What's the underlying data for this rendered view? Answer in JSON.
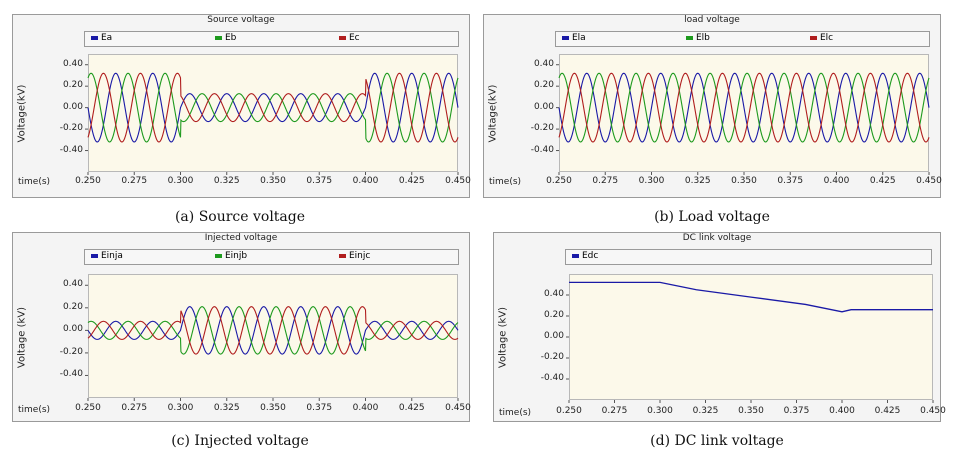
{
  "chart_data": [
    {
      "type": "line",
      "title": "Source voltage",
      "caption": "(a) Source voltage",
      "ylabel": "Voltage(kV)",
      "xlabel": "time(s)",
      "xlim": [
        0.25,
        0.45
      ],
      "ylim": [
        -0.6,
        0.5
      ],
      "xticks": [
        "0.250",
        "0.275",
        "0.300",
        "0.325",
        "0.350",
        "0.375",
        "0.400",
        "0.425",
        "0.450"
      ],
      "yticks": [
        "0.40",
        "0.20",
        "0.00",
        "-0.20",
        "-0.40"
      ],
      "series": [
        {
          "name": "Ea",
          "color": "#1a1aa6"
        },
        {
          "name": "Eb",
          "color": "#1e9a1e"
        },
        {
          "name": "Ec",
          "color": "#b01e1e"
        }
      ],
      "frequency_hz": 50,
      "amplitude_segments": [
        {
          "from": 0.25,
          "to": 0.3,
          "amplitude": 0.32
        },
        {
          "from": 0.3,
          "to": 0.4,
          "amplitude": 0.13
        },
        {
          "from": 0.4,
          "to": 0.45,
          "amplitude": 0.32
        }
      ]
    },
    {
      "type": "line",
      "title": "load voltage",
      "caption": "(b) Load voltage",
      "ylabel": "Voltage(kV)",
      "xlabel": "time(s)",
      "xlim": [
        0.25,
        0.45
      ],
      "ylim": [
        -0.6,
        0.5
      ],
      "xticks": [
        "0.250",
        "0.275",
        "0.300",
        "0.325",
        "0.350",
        "0.375",
        "0.400",
        "0.425",
        "0.450"
      ],
      "yticks": [
        "0.40",
        "0.20",
        "0.00",
        "-0.20",
        "-0.40"
      ],
      "series": [
        {
          "name": "Ela",
          "color": "#1a1aa6"
        },
        {
          "name": "Elb",
          "color": "#1e9a1e"
        },
        {
          "name": "Elc",
          "color": "#b01e1e"
        }
      ],
      "frequency_hz": 50,
      "amplitude_segments": [
        {
          "from": 0.25,
          "to": 0.45,
          "amplitude": 0.32
        }
      ]
    },
    {
      "type": "line",
      "title": "Injected voltage",
      "caption": "(c) Injected voltage",
      "ylabel": "Voltage (kV)",
      "xlabel": "time(s)",
      "xlim": [
        0.25,
        0.45
      ],
      "ylim": [
        -0.6,
        0.5
      ],
      "xticks": [
        "0.250",
        "0.275",
        "0.300",
        "0.325",
        "0.350",
        "0.375",
        "0.400",
        "0.425",
        "0.450"
      ],
      "yticks": [
        "0.40",
        "0.20",
        "0.00",
        "-0.20",
        "-0.40"
      ],
      "series": [
        {
          "name": "Einja",
          "color": "#1a1aa6"
        },
        {
          "name": "Einjb",
          "color": "#1e9a1e"
        },
        {
          "name": "Einjc",
          "color": "#b01e1e"
        }
      ],
      "frequency_hz": 50,
      "amplitude_segments": [
        {
          "from": 0.25,
          "to": 0.3,
          "amplitude": 0.08
        },
        {
          "from": 0.3,
          "to": 0.4,
          "amplitude": 0.21
        },
        {
          "from": 0.4,
          "to": 0.45,
          "amplitude": 0.08
        }
      ]
    },
    {
      "type": "line",
      "title": "DC link voltage",
      "caption": "(d) DC link voltage",
      "ylabel": "Voltage (kV)",
      "xlabel": "time(s)",
      "xlim": [
        0.25,
        0.45
      ],
      "ylim": [
        -0.6,
        0.6
      ],
      "xticks": [
        "0.250",
        "0.275",
        "0.300",
        "0.325",
        "0.350",
        "0.375",
        "0.400",
        "0.425",
        "0.450"
      ],
      "yticks": [
        "0.40",
        "0.20",
        "0.00",
        "-0.20",
        "-0.40"
      ],
      "series": [
        {
          "name": "Edc",
          "color": "#1a1aa6",
          "x": [
            0.25,
            0.3,
            0.32,
            0.35,
            0.38,
            0.4,
            0.405,
            0.45
          ],
          "y": [
            0.52,
            0.52,
            0.45,
            0.38,
            0.31,
            0.24,
            0.26,
            0.26
          ]
        }
      ]
    }
  ]
}
